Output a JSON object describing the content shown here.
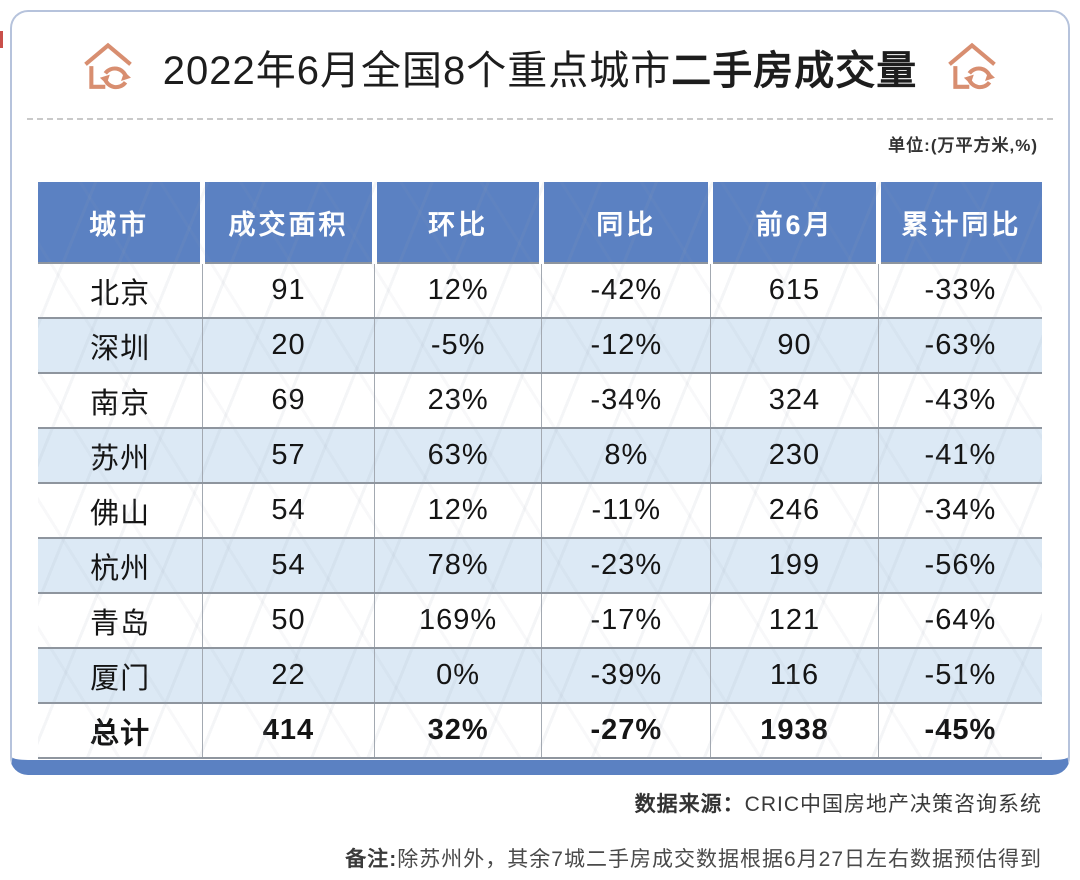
{
  "page": {
    "title_prefix": "2022年6月全国8个重点城市",
    "title_emphasis": "二手房成交量",
    "unit_label": "单位:(万平方米,%)"
  },
  "chart_data": {
    "type": "table",
    "title": "2022年6月全国8个重点城市二手房成交量",
    "unit": "万平方米,%",
    "columns": [
      "城市",
      "成交面积",
      "环比",
      "同比",
      "前6月",
      "累计同比"
    ],
    "rows": [
      [
        "北京",
        "91",
        "12%",
        "-42%",
        "615",
        "-33%"
      ],
      [
        "深圳",
        "20",
        "-5%",
        "-12%",
        "90",
        "-63%"
      ],
      [
        "南京",
        "69",
        "23%",
        "-34%",
        "324",
        "-43%"
      ],
      [
        "苏州",
        "57",
        "63%",
        "8%",
        "230",
        "-41%"
      ],
      [
        "佛山",
        "54",
        "12%",
        "-11%",
        "246",
        "-34%"
      ],
      [
        "杭州",
        "54",
        "78%",
        "-23%",
        "199",
        "-56%"
      ],
      [
        "青岛",
        "50",
        "169%",
        "-17%",
        "121",
        "-64%"
      ],
      [
        "厦门",
        "22",
        "0%",
        "-39%",
        "116",
        "-51%"
      ],
      [
        "总计",
        "414",
        "32%",
        "-27%",
        "1938",
        "-45%"
      ]
    ],
    "total_row_label": "总计",
    "layout_hints": {
      "alternating_row_shading": true,
      "header_background": "blue",
      "grid": true
    }
  },
  "footer": {
    "source_label": "数据来源：",
    "source_value": "CRIC中国房地产决策咨询系统",
    "note_label": "备注:",
    "note_value": "除苏州外，其余7城二手房成交数据根据6月27日左右数据预估得到"
  },
  "icons": {
    "left_title_icon": "house-refresh-icon",
    "right_title_icon": "house-refresh-icon"
  },
  "colors": {
    "header_blue": "#5b81c2",
    "alt_row_blue": "#dce9f5",
    "icon_salmon": "#d88e70",
    "card_border": "#b6c3dc"
  }
}
